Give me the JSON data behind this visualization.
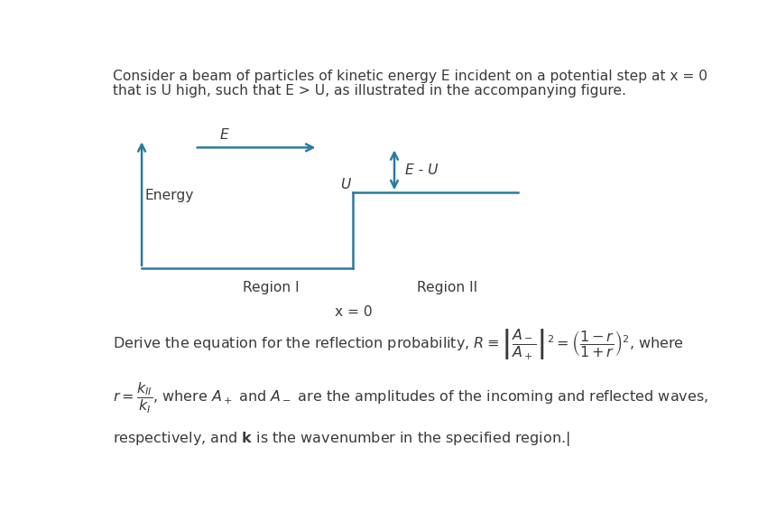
{
  "bg_color": "#ffffff",
  "text_color": "#3a3a3a",
  "arrow_color": "#2a7ba0",
  "line_color": "#2a7ba0",
  "fig_width": 8.4,
  "fig_height": 5.88,
  "top_text_line1": "Consider a beam of particles of kinetic energy E incident on a potential step at x = 0",
  "top_text_line2": "that is U high, such that E > U, as illustrated in the accompanying figure.",
  "label_energy": "Energy",
  "label_E": "E",
  "label_EU": "E - U",
  "label_U": "U",
  "label_region1": "Region I",
  "label_region2": "Region II",
  "label_x0": "x = 0"
}
